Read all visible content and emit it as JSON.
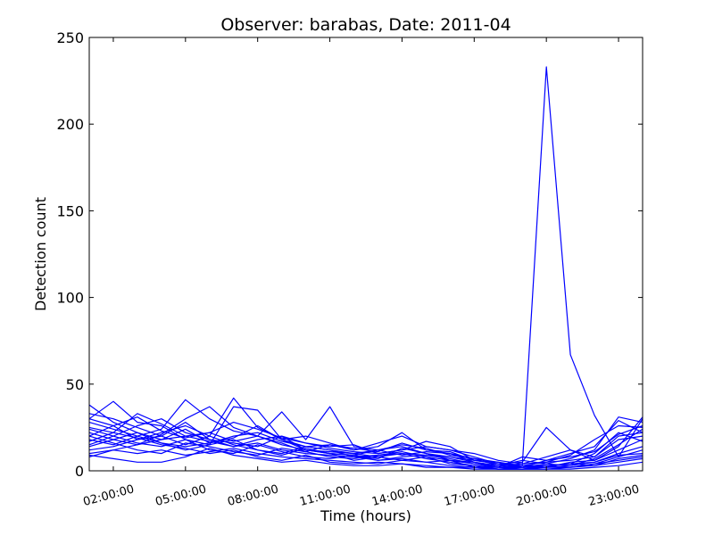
{
  "chart_data": {
    "type": "line",
    "title": "Observer: barabas, Date: 2011-04",
    "xlabel": "Time (hours)",
    "ylabel": "Detection count",
    "xlim": [
      1,
      24
    ],
    "ylim": [
      0,
      250
    ],
    "grid": false,
    "legend": "none",
    "line_color": "#0000ff",
    "x_ticks": [
      {
        "value": 2,
        "label": "02:00:00"
      },
      {
        "value": 5,
        "label": "05:00:00"
      },
      {
        "value": 8,
        "label": "08:00:00"
      },
      {
        "value": 11,
        "label": "11:00:00"
      },
      {
        "value": 14,
        "label": "14:00:00"
      },
      {
        "value": 17,
        "label": "17:00:00"
      },
      {
        "value": 20,
        "label": "20:00:00"
      },
      {
        "value": 23,
        "label": "23:00:00"
      }
    ],
    "y_ticks": [
      {
        "value": 0,
        "label": "0"
      },
      {
        "value": 50,
        "label": "50"
      },
      {
        "value": 100,
        "label": "100"
      },
      {
        "value": 150,
        "label": "150"
      },
      {
        "value": 200,
        "label": "200"
      },
      {
        "value": 250,
        "label": "250"
      }
    ],
    "x": [
      1,
      2,
      3,
      4,
      5,
      6,
      7,
      8,
      9,
      10,
      11,
      12,
      13,
      14,
      15,
      16,
      17,
      18,
      19,
      20,
      21,
      22,
      23,
      24
    ],
    "series": [
      {
        "values": [
          20,
          26,
          18,
          20,
          28,
          18,
          14,
          18,
          20,
          12,
          10,
          9,
          12,
          14,
          10,
          8,
          6,
          4,
          3,
          233,
          67,
          32,
          8,
          30
        ]
      },
      {
        "values": [
          38,
          28,
          22,
          18,
          24,
          16,
          20,
          22,
          17,
          14,
          15,
          12,
          16,
          20,
          14,
          12,
          8,
          4,
          5,
          25,
          12,
          6,
          14,
          31
        ]
      },
      {
        "values": [
          30,
          40,
          28,
          26,
          18,
          15,
          37,
          35,
          18,
          20,
          16,
          12,
          14,
          22,
          12,
          10,
          7,
          3,
          4,
          8,
          12,
          8,
          20,
          22
        ]
      },
      {
        "values": [
          25,
          22,
          33,
          27,
          20,
          22,
          28,
          24,
          19,
          16,
          14,
          15,
          10,
          12,
          17,
          14,
          6,
          5,
          3,
          5,
          9,
          18,
          26,
          25
        ]
      },
      {
        "values": [
          18,
          15,
          20,
          24,
          41,
          30,
          23,
          20,
          15,
          12,
          11,
          10,
          12,
          9,
          11,
          10,
          5,
          3,
          6,
          4,
          7,
          12,
          31,
          28
        ]
      },
      {
        "values": [
          33,
          30,
          25,
          20,
          15,
          20,
          42,
          25,
          18,
          14,
          12,
          10,
          8,
          10,
          9,
          8,
          5,
          2,
          8,
          6,
          10,
          14,
          29,
          22
        ]
      },
      {
        "values": [
          22,
          18,
          15,
          21,
          30,
          37,
          25,
          20,
          34,
          18,
          37,
          14,
          12,
          15,
          13,
          9,
          7,
          5,
          2,
          3,
          4,
          10,
          22,
          17
        ]
      },
      {
        "values": [
          15,
          20,
          26,
          30,
          22,
          18,
          16,
          14,
          20,
          16,
          13,
          11,
          10,
          12,
          14,
          12,
          10,
          6,
          4,
          5,
          6,
          8,
          18,
          20
        ]
      },
      {
        "values": [
          28,
          24,
          20,
          16,
          14,
          16,
          19,
          26,
          18,
          12,
          10,
          9,
          7,
          13,
          10,
          6,
          4,
          3,
          2,
          4,
          3,
          7,
          15,
          24
        ]
      },
      {
        "values": [
          12,
          14,
          18,
          22,
          26,
          20,
          15,
          12,
          10,
          14,
          12,
          8,
          9,
          11,
          8,
          6,
          5,
          3,
          2,
          2,
          5,
          6,
          12,
          18
        ]
      },
      {
        "values": [
          10,
          12,
          15,
          18,
          20,
          17,
          14,
          16,
          12,
          10,
          9,
          8,
          6,
          8,
          9,
          7,
          4,
          2,
          3,
          3,
          4,
          5,
          10,
          14
        ]
      },
      {
        "values": [
          20,
          16,
          12,
          10,
          16,
          14,
          11,
          9,
          13,
          11,
          8,
          7,
          9,
          10,
          7,
          5,
          3,
          2,
          2,
          3,
          2,
          4,
          8,
          12
        ]
      },
      {
        "values": [
          14,
          18,
          22,
          16,
          12,
          15,
          18,
          12,
          9,
          13,
          10,
          6,
          8,
          6,
          8,
          4,
          3,
          1,
          2,
          2,
          3,
          5,
          9,
          10
        ]
      },
      {
        "values": [
          24,
          20,
          16,
          14,
          18,
          12,
          10,
          15,
          11,
          8,
          7,
          9,
          6,
          7,
          5,
          6,
          2,
          2,
          1,
          3,
          4,
          3,
          7,
          9
        ]
      },
      {
        "values": [
          8,
          12,
          10,
          12,
          9,
          11,
          13,
          10,
          8,
          7,
          6,
          5,
          4,
          6,
          5,
          3,
          2,
          1,
          1,
          2,
          2,
          4,
          6,
          8
        ]
      },
      {
        "values": [
          17,
          22,
          19,
          15,
          13,
          10,
          12,
          8,
          6,
          9,
          5,
          4,
          5,
          4,
          3,
          2,
          2,
          1,
          1,
          1,
          2,
          3,
          5,
          7
        ]
      },
      {
        "values": [
          9,
          7,
          5,
          5,
          8,
          13,
          9,
          7,
          5,
          6,
          4,
          3,
          3,
          4,
          2,
          2,
          1,
          1,
          1,
          1,
          1,
          2,
          3,
          5
        ]
      },
      {
        "values": [
          30,
          26,
          31,
          23,
          19,
          22,
          17,
          20,
          16,
          11,
          15,
          13,
          11,
          16,
          12,
          11,
          6,
          4,
          2,
          6,
          8,
          11,
          21,
          26
        ]
      }
    ]
  }
}
